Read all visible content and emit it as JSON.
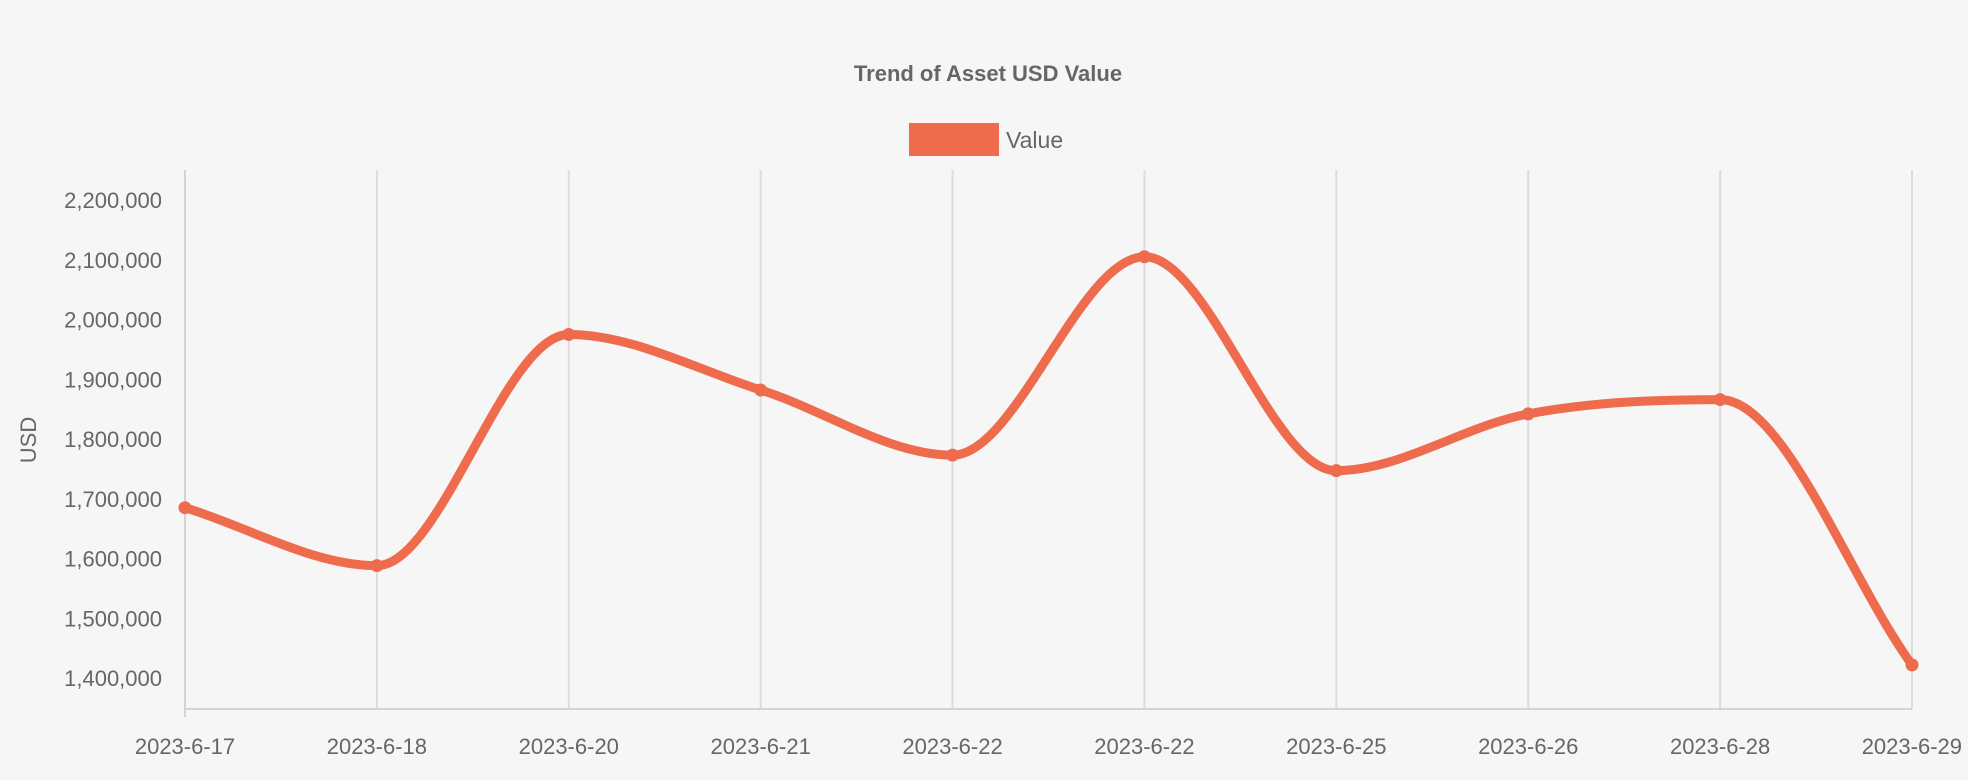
{
  "chart_data": {
    "type": "line",
    "title": "Trend of Asset USD Value",
    "xlabel": "",
    "ylabel": "USD",
    "categories": [
      "2023-6-17",
      "2023-6-18",
      "2023-6-20",
      "2023-6-21",
      "2023-6-22",
      "2023-6-22",
      "2023-6-25",
      "2023-6-26",
      "2023-6-28",
      "2023-6-29"
    ],
    "series": [
      {
        "name": "Value",
        "color": "#ee6c4d",
        "values": [
          1685000,
          1588000,
          1975000,
          1882000,
          1773000,
          2105000,
          1747000,
          1842000,
          1866000,
          1422000
        ]
      }
    ],
    "ylim": [
      1350000,
      2250000
    ],
    "yticks": [
      "2,200,000",
      "2,100,000",
      "2,000,000",
      "1,900,000",
      "1,800,000",
      "1,700,000",
      "1,600,000",
      "1,500,000",
      "1,400,000"
    ],
    "ytick_values": [
      2200000,
      2100000,
      2000000,
      1900000,
      1800000,
      1700000,
      1600000,
      1500000,
      1400000
    ],
    "grid": {
      "vertical": true,
      "horizontal": false
    },
    "legend_position": "top-center",
    "curve": "smooth"
  }
}
